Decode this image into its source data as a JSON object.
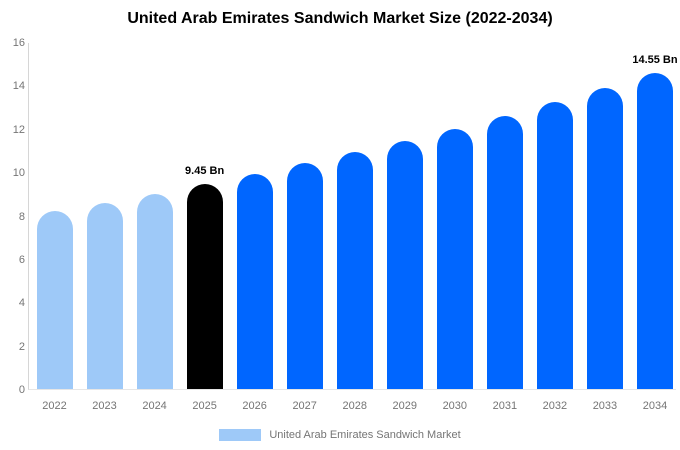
{
  "title": "United Arab Emirates Sandwich Market Size (2022-2034)",
  "legend": {
    "label": "United Arab Emirates Sandwich Market",
    "swatch_color": "#9ec9f8"
  },
  "chart_data": {
    "type": "bar",
    "title": "United Arab Emirates Sandwich Market Size (2022-2034)",
    "categories": [
      "2022",
      "2023",
      "2024",
      "2025",
      "2026",
      "2027",
      "2028",
      "2029",
      "2030",
      "2031",
      "2032",
      "2033",
      "2034"
    ],
    "values": [
      8.19,
      8.59,
      9.01,
      9.45,
      9.91,
      10.4,
      10.91,
      11.45,
      12.01,
      12.6,
      13.22,
      13.87,
      14.55
    ],
    "point_labels": [
      "",
      "",
      "",
      "9.45 Bn",
      "",
      "",
      "",
      "",
      "",
      "",
      "",
      "",
      "14.55 Bn"
    ],
    "bar_colors": [
      "#9ec9f8",
      "#9ec9f8",
      "#9ec9f8",
      "#000000",
      "#0066ff",
      "#0066ff",
      "#0066ff",
      "#0066ff",
      "#0066ff",
      "#0066ff",
      "#0066ff",
      "#0066ff",
      "#0066ff"
    ],
    "color_roles": {
      "historical": "#9ec9f8",
      "base_year": "#000000",
      "forecast": "#0066ff"
    },
    "xlabel": "",
    "ylabel": "",
    "ylim": [
      0,
      16
    ],
    "yticks": [
      0,
      2,
      4,
      6,
      8,
      10,
      12,
      14,
      16
    ],
    "grid": false,
    "legend_position": "bottom-center",
    "legend_entries": [
      {
        "label": "United Arab Emirates Sandwich Market",
        "color": "#9ec9f8"
      }
    ],
    "axis_colors": {
      "y_axis_line": "#d6d6d6",
      "baseline": "#e6e6e6",
      "tick_text": "#757575"
    }
  }
}
